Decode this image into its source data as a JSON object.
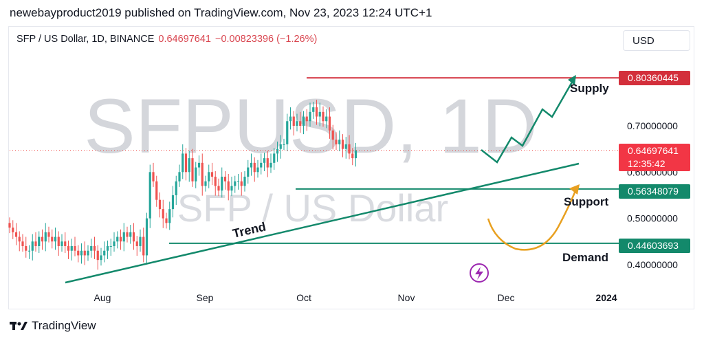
{
  "header": {
    "publish_line": "newebayproduct2019 published on TradingView.com, Nov 23, 2023 12:24 UTC+1",
    "symbol": "SFP / US Dollar, 1D, BINANCE",
    "price": "0.64697641",
    "change": "−0.00823396 (−1.26%)",
    "currency": "USD"
  },
  "watermark": {
    "big": "SFPUSD, 1D",
    "small": "SFP / US Dollar"
  },
  "footer": {
    "brand": "TradingView"
  },
  "colors": {
    "up": "#26a69a",
    "down": "#ef5350",
    "supply": "#d32f3b",
    "level": "#13896b",
    "arrow": "#e8a020",
    "projection": "#13896b"
  },
  "chart_data": {
    "type": "candlestick",
    "title": "SFP / US Dollar, 1D, BINANCE",
    "x_ticks": [
      "Aug",
      "Sep",
      "Oct",
      "Nov",
      "Dec",
      "2024"
    ],
    "y_ticks": [
      "0.70000000",
      "0.60000000",
      "0.50000000",
      "0.40000000"
    ],
    "ylim": [
      0.35,
      0.9
    ],
    "candles_days_range": [
      "2023-07-13",
      "2023-11-23"
    ],
    "closes": [
      0.48,
      0.47,
      0.46,
      0.45,
      0.44,
      0.43,
      0.43,
      0.45,
      0.44,
      0.46,
      0.45,
      0.47,
      0.46,
      0.45,
      0.46,
      0.44,
      0.45,
      0.44,
      0.43,
      0.44,
      0.43,
      0.42,
      0.43,
      0.42,
      0.43,
      0.44,
      0.43,
      0.41,
      0.42,
      0.43,
      0.44,
      0.44,
      0.45,
      0.46,
      0.45,
      0.47,
      0.46,
      0.47,
      0.45,
      0.44,
      0.46,
      0.42,
      0.5,
      0.6,
      0.58,
      0.54,
      0.52,
      0.5,
      0.49,
      0.52,
      0.55,
      0.58,
      0.6,
      0.64,
      0.6,
      0.63,
      0.58,
      0.61,
      0.62,
      0.57,
      0.58,
      0.6,
      0.59,
      0.57,
      0.56,
      0.59,
      0.58,
      0.56,
      0.57,
      0.58,
      0.58,
      0.57,
      0.59,
      0.61,
      0.62,
      0.6,
      0.61,
      0.62,
      0.63,
      0.61,
      0.62,
      0.64,
      0.65,
      0.66,
      0.66,
      0.71,
      0.72,
      0.7,
      0.71,
      0.7,
      0.72,
      0.71,
      0.73,
      0.74,
      0.72,
      0.73,
      0.71,
      0.72,
      0.69,
      0.67,
      0.66,
      0.67,
      0.65,
      0.66,
      0.64,
      0.63,
      0.647
    ],
    "levels": [
      {
        "name": "Supply",
        "value": "0.80360445"
      },
      {
        "name": "Support",
        "value": "0.56348079"
      },
      {
        "name": "Demand",
        "value": "0.44603693"
      }
    ],
    "current": {
      "value": "0.64697641",
      "timer": "12:35:42"
    },
    "annotations": [
      "Supply",
      "Support",
      "Demand",
      "Trend"
    ]
  }
}
